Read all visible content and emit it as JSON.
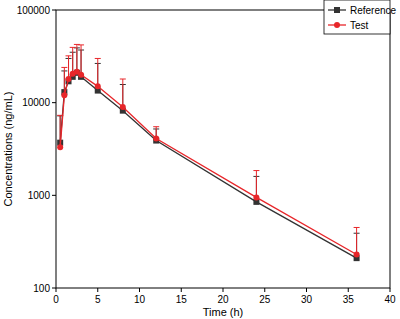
{
  "chart_data": {
    "type": "line",
    "x_label": "Time (h)",
    "y_label": "Concentrations (ng/mL)",
    "x": [
      0.5,
      1,
      1.5,
      2,
      2.5,
      3,
      5,
      8,
      12,
      24,
      36
    ],
    "series": [
      {
        "name": "Reference",
        "color": "#333333",
        "marker": "square",
        "line_style": "solid",
        "values": [
          3700,
          13000,
          17000,
          19000,
          21000,
          19000,
          13500,
          8200,
          3900,
          850,
          210
        ],
        "errors": [
          3500,
          9000,
          13000,
          16000,
          18000,
          18000,
          13000,
          7500,
          1300,
          750,
          180
        ]
      },
      {
        "name": "Test",
        "color": "#e8262a",
        "marker": "circle",
        "line_style": "solid",
        "values": [
          3300,
          12000,
          18000,
          20500,
          21500,
          20000,
          15000,
          9000,
          4100,
          950,
          230
        ],
        "errors": [
          4000,
          12000,
          14000,
          19000,
          21000,
          22000,
          15000,
          9000,
          1400,
          900,
          220
        ]
      }
    ],
    "xlim": [
      0,
      40
    ],
    "xticks": [
      0,
      5,
      10,
      15,
      20,
      25,
      30,
      35,
      40
    ],
    "ylim": [
      100,
      100000
    ],
    "yticks": [
      100,
      1000,
      10000,
      100000
    ],
    "log": "y",
    "grid": false,
    "legend": "upper right"
  }
}
